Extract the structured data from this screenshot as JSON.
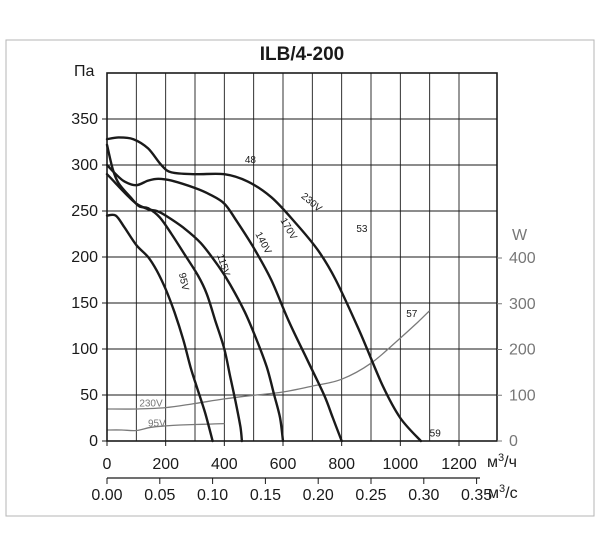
{
  "chart_data": {
    "type": "line",
    "title": "ILB/4-200",
    "y_left": {
      "label": "Па",
      "range": [
        0,
        350
      ],
      "ticks": [
        0,
        50,
        100,
        150,
        200,
        250,
        300,
        350
      ]
    },
    "y_right": {
      "label": "W",
      "range": [
        0,
        400
      ],
      "ticks": [
        0,
        100,
        200,
        300,
        400
      ],
      "color": "#777777"
    },
    "x_primary": {
      "unit_prefix": "м",
      "unit_sup": "3",
      "unit_suffix": "/ч",
      "range": [
        0,
        1200
      ],
      "ticks": [
        0,
        200,
        400,
        600,
        800,
        1000,
        1200
      ]
    },
    "x_secondary": {
      "unit_prefix": "м",
      "unit_sup": "3",
      "unit_suffix": "/с",
      "ticks": [
        "0.00",
        "0.05",
        "0.10",
        "0.15",
        "0.20",
        "0.25",
        "0.30",
        "0.35"
      ],
      "tick_values": [
        0,
        0.05,
        0.1,
        0.15,
        0.2,
        0.25,
        0.3,
        0.35
      ]
    },
    "grid": true,
    "pressure_series": [
      {
        "name": "230V",
        "axis": "left",
        "points": [
          [
            0,
            328
          ],
          [
            40,
            330
          ],
          [
            90,
            328
          ],
          [
            140,
            318
          ],
          [
            185,
            300
          ],
          [
            220,
            292
          ],
          [
            300,
            290
          ],
          [
            400,
            290
          ],
          [
            480,
            282
          ],
          [
            560,
            265
          ],
          [
            640,
            238
          ],
          [
            720,
            207
          ],
          [
            780,
            175
          ],
          [
            860,
            120
          ],
          [
            940,
            60
          ],
          [
            1000,
            25
          ],
          [
            1070,
            0
          ]
        ]
      },
      {
        "name": "170V",
        "axis": "left",
        "points": [
          [
            0,
            300
          ],
          [
            30,
            290
          ],
          [
            60,
            282
          ],
          [
            100,
            278
          ],
          [
            140,
            283
          ],
          [
            175,
            285
          ],
          [
            220,
            283
          ],
          [
            300,
            275
          ],
          [
            350,
            268
          ],
          [
            400,
            258
          ],
          [
            440,
            240
          ],
          [
            500,
            210
          ],
          [
            560,
            175
          ],
          [
            620,
            130
          ],
          [
            680,
            90
          ],
          [
            740,
            50
          ],
          [
            770,
            25
          ],
          [
            800,
            0
          ]
        ]
      },
      {
        "name": "140V",
        "axis": "left",
        "points": [
          [
            0,
            290
          ],
          [
            30,
            280
          ],
          [
            60,
            270
          ],
          [
            100,
            258
          ],
          [
            140,
            252
          ],
          [
            170,
            250
          ],
          [
            200,
            245
          ],
          [
            260,
            232
          ],
          [
            320,
            215
          ],
          [
            380,
            190
          ],
          [
            420,
            170
          ],
          [
            470,
            140
          ],
          [
            510,
            110
          ],
          [
            545,
            80
          ],
          [
            570,
            50
          ],
          [
            590,
            25
          ],
          [
            600,
            0
          ]
        ]
      },
      {
        "name": "115V",
        "axis": "left",
        "points": [
          [
            0,
            322
          ],
          [
            20,
            295
          ],
          [
            40,
            280
          ],
          [
            80,
            265
          ],
          [
            110,
            255
          ],
          [
            140,
            253
          ],
          [
            180,
            243
          ],
          [
            220,
            225
          ],
          [
            260,
            205
          ],
          [
            310,
            180
          ],
          [
            340,
            160
          ],
          [
            370,
            130
          ],
          [
            400,
            100
          ],
          [
            420,
            70
          ],
          [
            440,
            40
          ],
          [
            455,
            15
          ],
          [
            460,
            0
          ]
        ]
      },
      {
        "name": "95V",
        "axis": "left",
        "points": [
          [
            0,
            245
          ],
          [
            30,
            245
          ],
          [
            60,
            232
          ],
          [
            100,
            213
          ],
          [
            140,
            200
          ],
          [
            170,
            185
          ],
          [
            200,
            165
          ],
          [
            230,
            140
          ],
          [
            260,
            110
          ],
          [
            285,
            80
          ],
          [
            310,
            55
          ],
          [
            335,
            30
          ],
          [
            360,
            0
          ]
        ]
      }
    ],
    "power_series": [
      {
        "name": "230V",
        "axis": "right",
        "points": [
          [
            0,
            70
          ],
          [
            100,
            70
          ],
          [
            200,
            73
          ],
          [
            300,
            82
          ],
          [
            400,
            92
          ],
          [
            500,
            100
          ],
          [
            600,
            107
          ],
          [
            700,
            120
          ],
          [
            800,
            135
          ],
          [
            900,
            170
          ],
          [
            1000,
            225
          ],
          [
            1060,
            260
          ],
          [
            1100,
            285
          ]
        ]
      },
      {
        "name": "95V",
        "axis": "right",
        "points": [
          [
            0,
            24
          ],
          [
            50,
            24
          ],
          [
            100,
            23
          ],
          [
            150,
            30
          ],
          [
            200,
            33
          ],
          [
            250,
            35
          ],
          [
            300,
            36
          ],
          [
            350,
            37
          ],
          [
            400,
            38
          ]
        ]
      }
    ],
    "annotations": [
      {
        "text": "48",
        "x": 470,
        "y": 302
      },
      {
        "text": "53",
        "x": 850,
        "y": 227
      },
      {
        "text": "57",
        "x": 1020,
        "y": 135
      },
      {
        "text": "59",
        "x": 1100,
        "y": 5
      }
    ],
    "curve_labels": [
      {
        "text": "230V",
        "x": 660,
        "y": 265,
        "angle": 40
      },
      {
        "text": "170V",
        "x": 590,
        "y": 240,
        "angle": 60
      },
      {
        "text": "140V",
        "x": 505,
        "y": 225,
        "angle": 62
      },
      {
        "text": "115V",
        "x": 375,
        "y": 202,
        "angle": 72
      },
      {
        "text": "95V",
        "x": 245,
        "y": 182,
        "angle": 78
      }
    ],
    "power_labels": [
      {
        "text": "230V",
        "x": 150,
        "y": 75
      },
      {
        "text": "95V",
        "x": 170,
        "y": 32
      }
    ]
  }
}
